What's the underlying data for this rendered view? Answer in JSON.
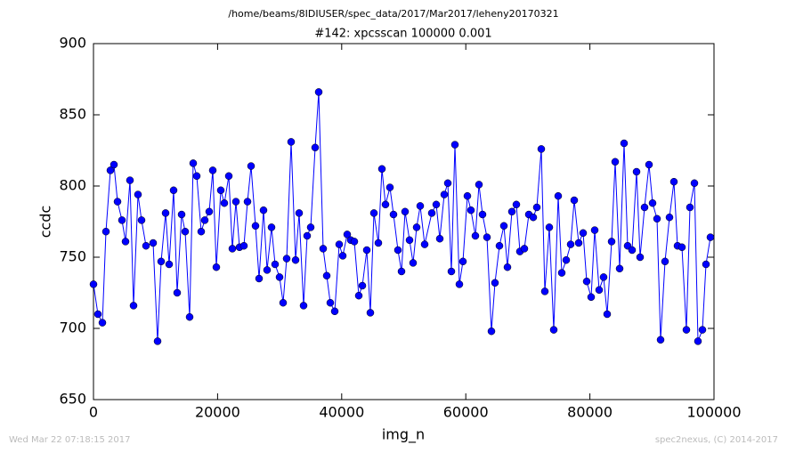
{
  "chart_data": {
    "type": "line",
    "suptitle": "/home/beams/8IDIUSER/spec_data/2017/Mar2017/leheny20170321",
    "title": "#142: xpcsscan 100000 0.001",
    "xlabel": "img_n",
    "ylabel": "ccdc",
    "xlim": [
      0,
      100000
    ],
    "xticks": [
      0,
      20000,
      40000,
      60000,
      80000,
      100000
    ],
    "ylim": [
      650,
      900
    ],
    "yticks": [
      650,
      700,
      750,
      800,
      850,
      900
    ],
    "x": [
      0,
      717,
      1435,
      2009,
      2726,
      3300,
      3874,
      4591,
      5165,
      5882,
      6456,
      7174,
      7747,
      8465,
      9613,
      10330,
      10904,
      11621,
      12195,
      12912,
      13486,
      14204,
      14778,
      15495,
      16069,
      16643,
      17360,
      17934,
      18651,
      19225,
      19799,
      20516,
      21090,
      21808,
      22382,
      22956,
      23529,
      24247,
      24821,
      25395,
      26112,
      26686,
      27403,
      27977,
      28694,
      29268,
      29986,
      30560,
      31133,
      31851,
      32568,
      33142,
      33859,
      34433,
      35007,
      35725,
      36298,
      37016,
      37590,
      38164,
      38881,
      39598,
      40172,
      40890,
      41463,
      42037,
      42755,
      43329,
      44046,
      44620,
      45194,
      45911,
      46485,
      47059,
      47776,
      48350,
      49067,
      49641,
      50215,
      50933,
      51506,
      52080,
      52654,
      53372,
      54519,
      55237,
      55811,
      56528,
      57102,
      57676,
      58250,
      58967,
      59541,
      60258,
      60832,
      61549,
      62123,
      62697,
      63415,
      64132,
      64706,
      65423,
      66141,
      66714,
      67432,
      68149,
      68723,
      69440,
      70158,
      70875,
      71449,
      72166,
      72740,
      73458,
      74175,
      74892,
      75466,
      76184,
      76901,
      77475,
      78192,
      78910,
      79484,
      80201,
      80775,
      81492,
      82209,
      82783,
      83501,
      84075,
      84792,
      85509,
      86083,
      86800,
      87518,
      88092,
      88809,
      89527,
      90100,
      90818,
      91392,
      92109,
      92826,
      93544,
      94118,
      94835,
      95552,
      96126,
      96844,
      97418,
      98135,
      98709,
      99426
    ],
    "series": [
      {
        "color": "#0000ff",
        "values": [
          731,
          710,
          704,
          768,
          811,
          815,
          789,
          776,
          761,
          804,
          716,
          794,
          776,
          758,
          760,
          691,
          747,
          781,
          745,
          797,
          725,
          780,
          768,
          708,
          816,
          807,
          768,
          776,
          782,
          811,
          743,
          797,
          788,
          807,
          756,
          789,
          757,
          758,
          789,
          814,
          772,
          735,
          783,
          741,
          771,
          745,
          736,
          718,
          749,
          831,
          748,
          781,
          716,
          765,
          771,
          827,
          866,
          756,
          737,
          718,
          712,
          759,
          751,
          766,
          762,
          761,
          723,
          730,
          755,
          711,
          781,
          760,
          812,
          787,
          799,
          780,
          755,
          740,
          782,
          762,
          746,
          771,
          786,
          759,
          781,
          787,
          763,
          794,
          802,
          740,
          829,
          731,
          747,
          793,
          783,
          765,
          801,
          780,
          764,
          698,
          732,
          758,
          772,
          743,
          782,
          787,
          754,
          756,
          780,
          778,
          785,
          826,
          726,
          771,
          699,
          793,
          739,
          748,
          759,
          790,
          760,
          767,
          733,
          722,
          769,
          727,
          736,
          710,
          761,
          817,
          742,
          830,
          758,
          755,
          810,
          750,
          785,
          815,
          788,
          777,
          692,
          747,
          778,
          803,
          758,
          757,
          699,
          785,
          802,
          691,
          699,
          745,
          764
        ]
      }
    ]
  },
  "footer": {
    "left": "Wed Mar 22 07:18:15 2017",
    "right": "spec2nexus, (C) 2014-2017"
  }
}
